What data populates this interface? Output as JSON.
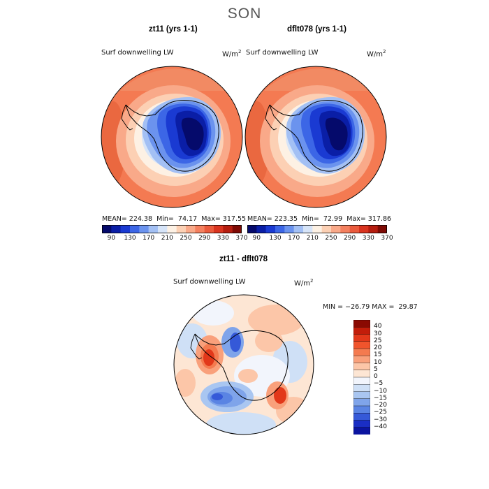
{
  "title": "SON",
  "panels": [
    {
      "title": "zt11 (yrs 1-1)",
      "variable": "Surf downwelling LW",
      "units": "W/m",
      "units_exp": "2",
      "mean": "MEAN= 224.38",
      "min": "Min=  74.17",
      "max": "Max= 317.55"
    },
    {
      "title": "dflt078 (yrs 1-1)",
      "variable": "Surf downwelling LW",
      "units": "W/m",
      "units_exp": "2",
      "mean": "MEAN= 223.35",
      "min": "Min=  72.99",
      "max": "Max= 317.86"
    }
  ],
  "colorbar_top": {
    "ticks": [
      "90",
      "130",
      "170",
      "210",
      "250",
      "290",
      "330",
      "370"
    ],
    "colors": [
      "#050a6b",
      "#0a1ea6",
      "#1a3ad2",
      "#3c66e6",
      "#6b93ee",
      "#a3c0f4",
      "#d6e4f8",
      "#fdf1e4",
      "#fcd0b4",
      "#f9a989",
      "#f4805f",
      "#ea5a3c",
      "#d9341f",
      "#b51d0f",
      "#7e0a04"
    ]
  },
  "diff": {
    "title": "zt11 - dflt078",
    "variable": "Surf downwelling LW",
    "units": "W/m",
    "units_exp": "2",
    "stats": "MIN = −26.79 MAX =  29.87",
    "colorbar_labels": [
      "40",
      "30",
      "25",
      "20",
      "15",
      "10",
      "5",
      "0",
      "−5",
      "−10",
      "−15",
      "−20",
      "−25",
      "−30",
      "−40"
    ],
    "colorbar_colors": [
      "#8a0a02",
      "#c21d0a",
      "#e2381a",
      "#f0542c",
      "#f47a4f",
      "#f9a07b",
      "#fcc6a8",
      "#fde6d4",
      "#f2f5fc",
      "#cfe0f6",
      "#a9c6f1",
      "#7fa4ea",
      "#5a84e3",
      "#3559d8",
      "#1a2ec4",
      "#0b14a0"
    ]
  }
}
